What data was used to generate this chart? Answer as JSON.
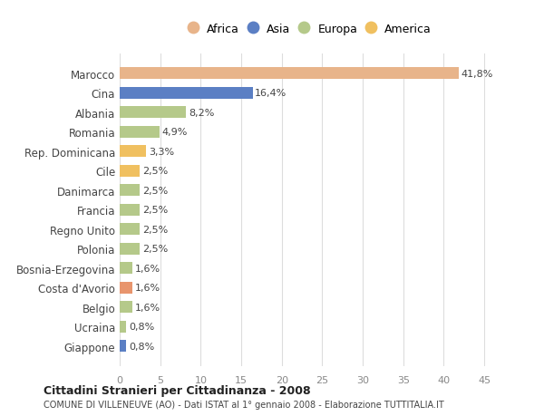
{
  "categories": [
    "Giappone",
    "Ucraina",
    "Belgio",
    "Costa d'Avorio",
    "Bosnia-Erzegovina",
    "Polonia",
    "Regno Unito",
    "Francia",
    "Danimarca",
    "Cile",
    "Rep. Dominicana",
    "Romania",
    "Albania",
    "Cina",
    "Marocco"
  ],
  "values": [
    0.8,
    0.8,
    1.6,
    1.6,
    1.6,
    2.5,
    2.5,
    2.5,
    2.5,
    2.5,
    3.3,
    4.9,
    8.2,
    16.4,
    41.8
  ],
  "colors": [
    "#5b7fc4",
    "#b5c98a",
    "#b5c98a",
    "#e8956d",
    "#b5c98a",
    "#b5c98a",
    "#b5c98a",
    "#b5c98a",
    "#b5c98a",
    "#f0c060",
    "#f0c060",
    "#b5c98a",
    "#b5c98a",
    "#5b7fc4",
    "#e8b48a"
  ],
  "labels": [
    "0,8%",
    "0,8%",
    "1,6%",
    "1,6%",
    "1,6%",
    "2,5%",
    "2,5%",
    "2,5%",
    "2,5%",
    "2,5%",
    "3,3%",
    "4,9%",
    "8,2%",
    "16,4%",
    "41,8%"
  ],
  "legend": [
    {
      "label": "Africa",
      "color": "#e8b48a"
    },
    {
      "label": "Asia",
      "color": "#5b7fc4"
    },
    {
      "label": "Europa",
      "color": "#b5c98a"
    },
    {
      "label": "America",
      "color": "#f0c060"
    }
  ],
  "title": "Cittadini Stranieri per Cittadinanza - 2008",
  "subtitle": "COMUNE DI VILLENEUVE (AO) - Dati ISTAT al 1° gennaio 2008 - Elaborazione TUTTITALIA.IT",
  "xlim": [
    0,
    47
  ],
  "xticks": [
    0,
    5,
    10,
    15,
    20,
    25,
    30,
    35,
    40,
    45
  ],
  "bg_color": "#ffffff",
  "grid_color": "#dddddd"
}
